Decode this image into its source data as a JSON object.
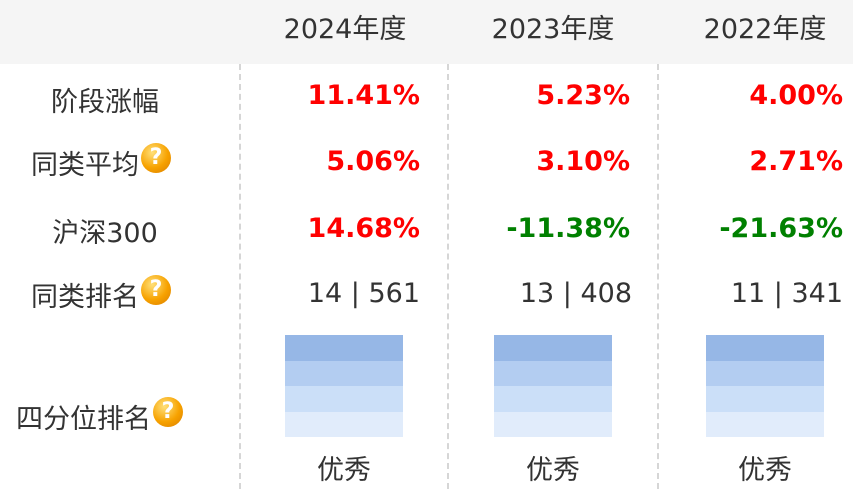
{
  "headers": [
    "2024年度",
    "2023年度",
    "2022年度"
  ],
  "rows": {
    "stage_gain": {
      "label": "阶段涨幅",
      "values": [
        "11.41%",
        "5.23%",
        "4.00%"
      ]
    },
    "peer_avg": {
      "label": "同类平均",
      "values": [
        "5.06%",
        "3.10%",
        "2.71%"
      ]
    },
    "csi300": {
      "label": "沪深300",
      "values": [
        "14.68%",
        "-11.38%",
        "-21.63%"
      ]
    },
    "peer_rank": {
      "label": "同类排名",
      "values": [
        "14 | 561",
        "13 | 408",
        "11 | 341"
      ]
    },
    "quartile": {
      "label": "四分位排名",
      "values": [
        "优秀",
        "优秀",
        "优秀"
      ]
    }
  },
  "help_glyph": "?",
  "colors": {
    "positive": "#ff0000",
    "negative": "#008000",
    "text": "#333333",
    "header_bg": "#f5f5f5"
  }
}
